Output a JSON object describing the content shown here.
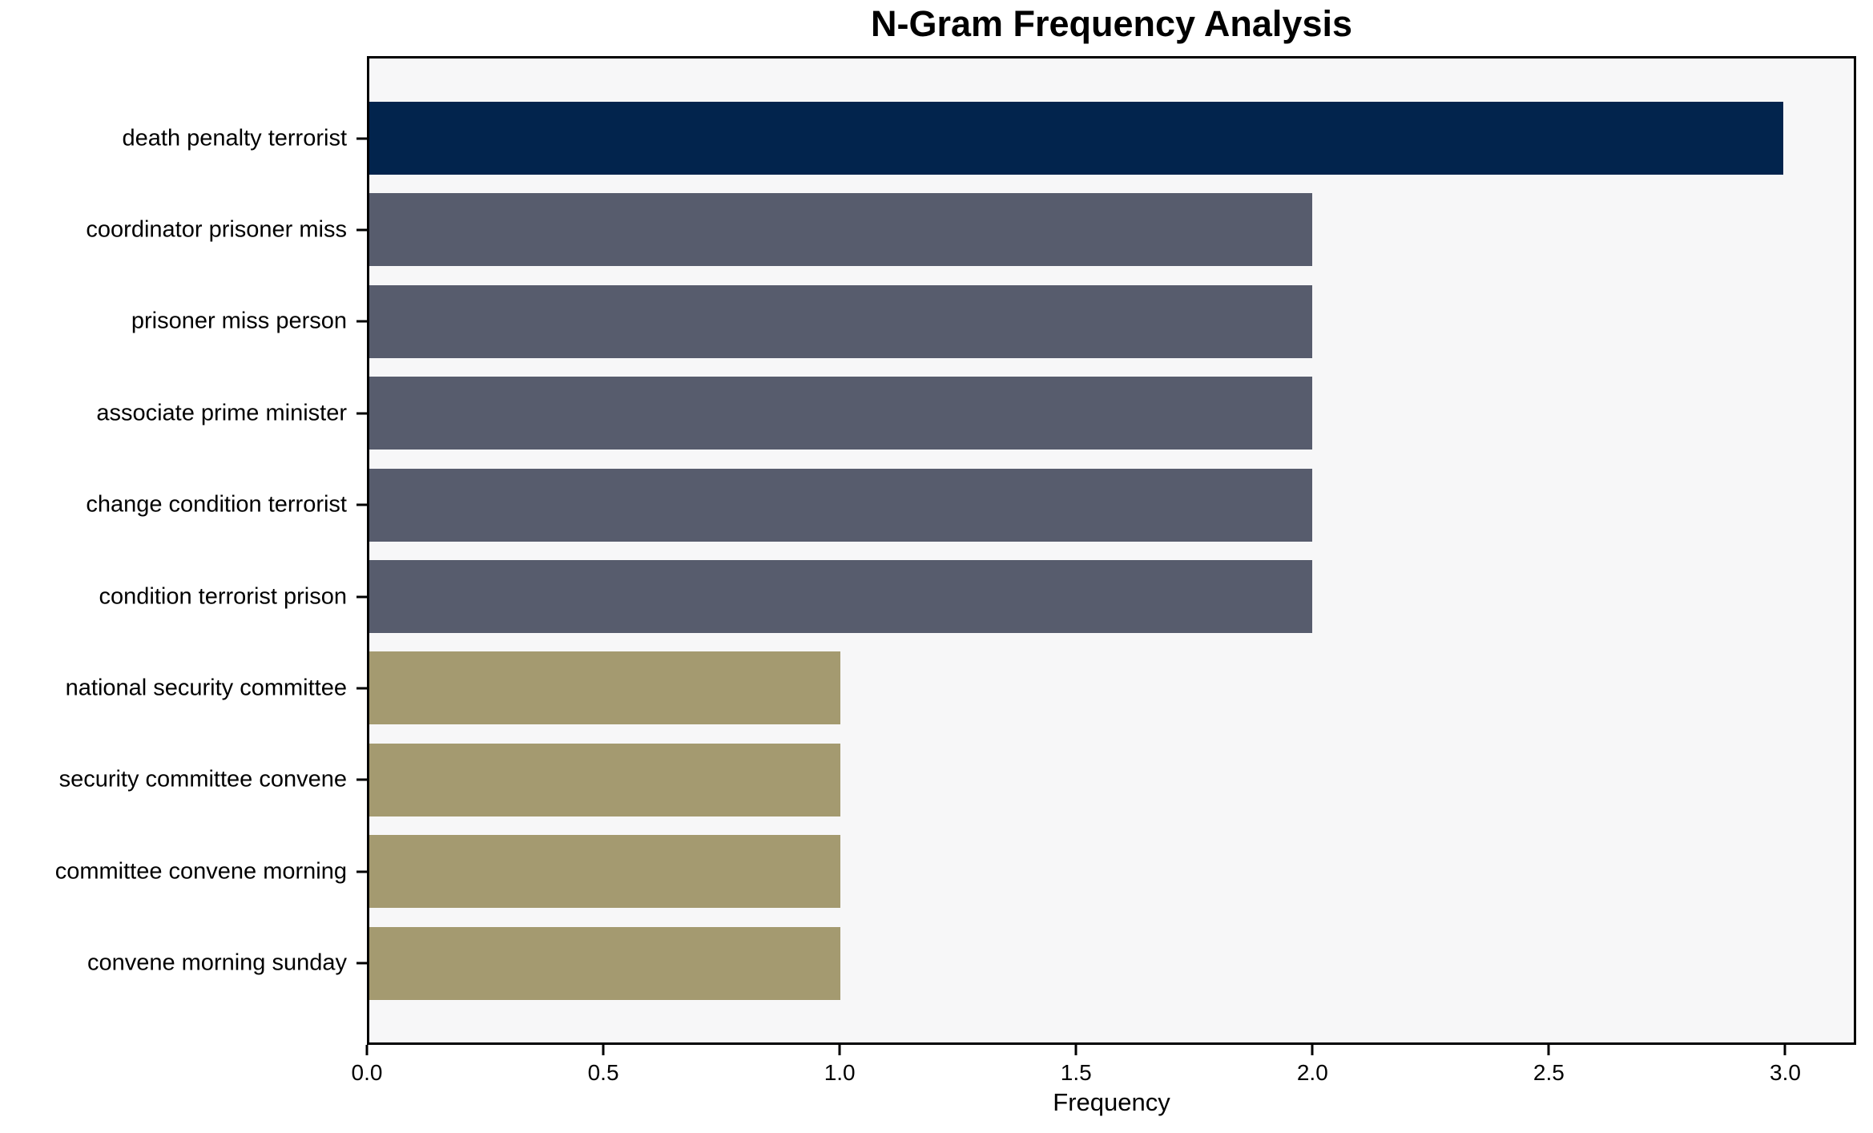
{
  "chart_data": {
    "type": "bar",
    "orientation": "horizontal",
    "title": "N-Gram Frequency Analysis",
    "xlabel": "Frequency",
    "ylabel": "",
    "categories": [
      "death penalty terrorist",
      "coordinator prisoner miss",
      "prisoner miss person",
      "associate prime minister",
      "change condition terrorist",
      "condition terrorist prison",
      "national security committee",
      "security committee convene",
      "committee convene morning",
      "convene morning sunday"
    ],
    "values": [
      3,
      2,
      2,
      2,
      2,
      2,
      1,
      1,
      1,
      1
    ],
    "bar_colors": [
      "#02244d",
      "#575c6d",
      "#575c6d",
      "#575c6d",
      "#575c6d",
      "#575c6d",
      "#a49a70",
      "#a49a70",
      "#a49a70",
      "#a49a70"
    ],
    "xlim": [
      0,
      3.15
    ],
    "xticks": [
      "0.0",
      "0.5",
      "1.0",
      "1.5",
      "2.0",
      "2.5",
      "3.0"
    ],
    "xtick_values": [
      0,
      0.5,
      1,
      1.5,
      2,
      2.5,
      3
    ],
    "grid": false,
    "legend": false,
    "colors": {
      "highest_bar": "#02244d",
      "mid_bar": "#575c6d",
      "low_bar": "#a49a70",
      "plot_background": "#f7f7f8",
      "figure_background": "#ffffff",
      "axis": "#000000",
      "text": "#000000"
    }
  }
}
